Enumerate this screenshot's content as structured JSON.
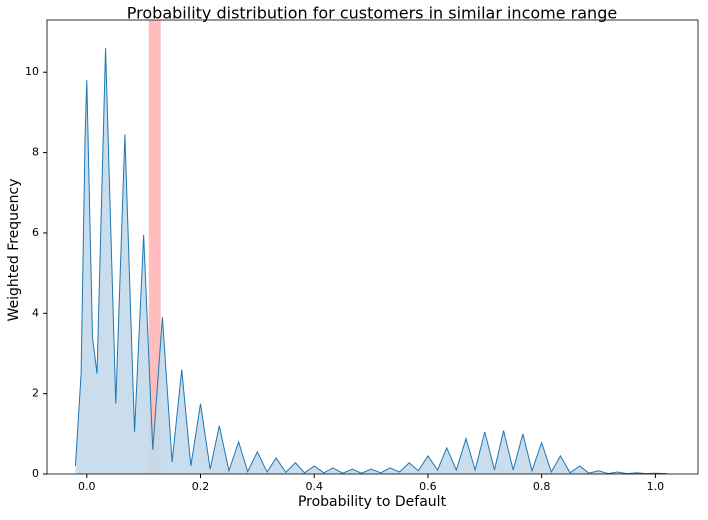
{
  "chart_data": {
    "type": "area",
    "title": "Probability distribution for customers in similar income range",
    "xlabel": "Probability to Default",
    "ylabel": "Weighted Frequency",
    "x": [
      -0.02,
      -0.01,
      -0.003,
      0,
      0.01,
      0.018,
      0.033,
      0.051,
      0.067,
      0.084,
      0.1,
      0.116,
      0.133,
      0.15,
      0.167,
      0.183,
      0.2,
      0.217,
      0.233,
      0.25,
      0.267,
      0.283,
      0.3,
      0.317,
      0.333,
      0.35,
      0.367,
      0.383,
      0.4,
      0.417,
      0.433,
      0.45,
      0.467,
      0.483,
      0.5,
      0.517,
      0.533,
      0.55,
      0.567,
      0.583,
      0.6,
      0.617,
      0.633,
      0.65,
      0.667,
      0.683,
      0.7,
      0.717,
      0.733,
      0.75,
      0.767,
      0.783,
      0.8,
      0.817,
      0.833,
      0.85,
      0.867,
      0.883,
      0.9,
      0.917,
      0.933,
      0.95,
      0.967,
      0.983,
      1.0,
      1.02
    ],
    "series": [
      {
        "color": "#1f77b4",
        "fill": "#c4d9ea",
        "values": [
          0.2,
          2.5,
          8.4,
          9.8,
          3.4,
          2.5,
          10.6,
          1.75,
          8.45,
          1.05,
          5.95,
          0.6,
          3.9,
          0.3,
          2.6,
          0.2,
          1.75,
          0.12,
          1.2,
          0.08,
          0.8,
          0.06,
          0.55,
          0.05,
          0.4,
          0.04,
          0.28,
          0.03,
          0.2,
          0.03,
          0.15,
          0.02,
          0.12,
          0.02,
          0.12,
          0.03,
          0.15,
          0.05,
          0.28,
          0.08,
          0.45,
          0.1,
          0.65,
          0.1,
          0.88,
          0.1,
          1.05,
          0.1,
          1.08,
          0.1,
          1.0,
          0.08,
          0.78,
          0.05,
          0.45,
          0.03,
          0.2,
          0.02,
          0.08,
          0.01,
          0.05,
          0.01,
          0.03,
          0.01,
          0.02,
          0.01
        ]
      }
    ],
    "span": {
      "x": [
        0.109,
        0.13
      ],
      "color": "#ff9999"
    },
    "xlim": [
      -0.07,
      1.075
    ],
    "ylim": [
      0,
      11.3
    ],
    "xticks": [
      {
        "value": 0,
        "label": "0.0"
      },
      0.2,
      0.4,
      0.6,
      0.8,
      {
        "value": 1,
        "label": "1.0"
      }
    ],
    "yticks": [
      0,
      2,
      4,
      6,
      8,
      10
    ]
  }
}
